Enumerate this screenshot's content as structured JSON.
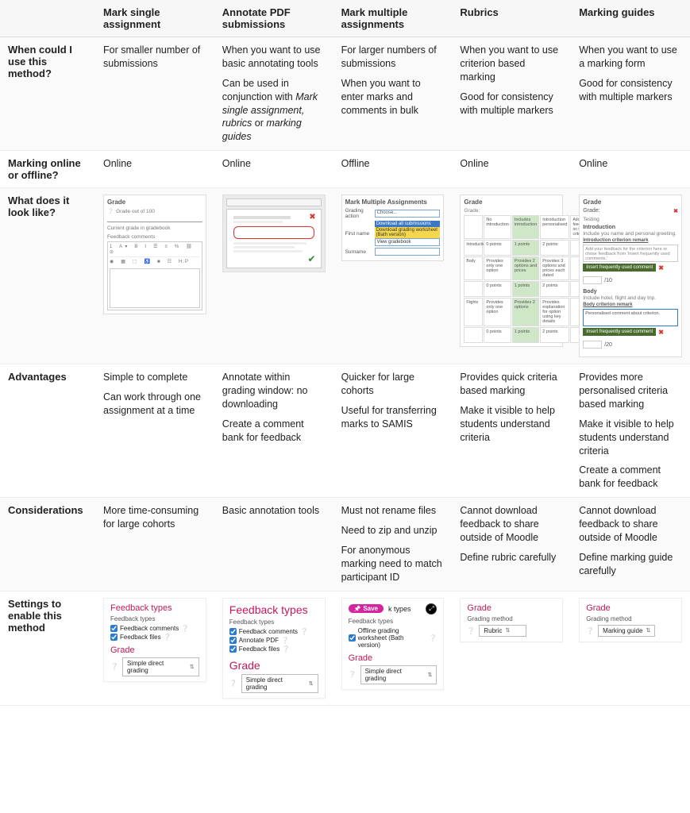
{
  "headers": [
    "",
    "Mark single assignment",
    "Annotate PDF submissions",
    "Mark multiple assignments",
    "Rubrics",
    "Marking guides"
  ],
  "rows": {
    "when": {
      "label": "When could I use this method?",
      "c1": [
        "For smaller number of submissions"
      ],
      "c2": [
        "When you want to use basic annotating tools",
        "Can be used in conjunction with <em>Mark single assignment, rubrics</em> or <em>marking guides</em>"
      ],
      "c3": [
        "For larger numbers of submissions",
        "When you want to enter marks and comments in bulk"
      ],
      "c4": [
        "When you want to use criterion based marking",
        "Good for consistency with multiple markers"
      ],
      "c5": [
        "When you want to use a marking form",
        "Good for consistency with multiple markers"
      ]
    },
    "online": {
      "label": "Marking online or offline?",
      "c1": "Online",
      "c2": "Online",
      "c3": "Offline",
      "c4": "Online",
      "c5": "Online"
    },
    "look": {
      "label": "What does it look like?"
    },
    "adv": {
      "label": "Advantages",
      "c1": [
        "Simple to complete",
        "Can work through one assignment at a time"
      ],
      "c2": [
        "Annotate within grading window: no downloading",
        "Create a comment bank for feedback"
      ],
      "c3": [
        "Quicker for large cohorts",
        "Useful for transferring marks to SAMIS"
      ],
      "c4": [
        "Provides quick criteria based marking",
        "Make it visible to help students understand criteria"
      ],
      "c5": [
        "Provides more personalised criteria based marking",
        "Make it visible to help students understand criteria",
        "Create a comment bank for feedback"
      ]
    },
    "cons": {
      "label": "Considerations",
      "c1": [
        "More time-consuming for large cohorts"
      ],
      "c2": [
        "Basic annotation tools"
      ],
      "c3": [
        "Must not rename files",
        "Need to zip and unzip",
        "For anonymous marking need to match participant ID"
      ],
      "c4": [
        "Cannot download feedback to share outside of Moodle",
        "Define rubric carefully"
      ],
      "c5": [
        "Cannot download feedback to share outside of Moodle",
        "Define marking guide carefully"
      ]
    },
    "settings": {
      "label": "Settings to enable this method"
    }
  },
  "thumbs": {
    "single": {
      "grade": "Grade",
      "outof": "Grade out of 100",
      "current": "Current grade in gradebook",
      "fb": "Feedback comments"
    },
    "multi": {
      "title": "Mark Multiple Assignments",
      "grading_action": "Grading action",
      "choose": "Choose...",
      "opt1": "Download all submissions",
      "opt2": "Download grading worksheet (Bath version)",
      "opt3": "View gradebook",
      "firstname": "First name",
      "surname": "Surname"
    },
    "rubric": {
      "grade": "Grade",
      "r1": "Introduction",
      "r2": "Body",
      "r3": "Flights"
    },
    "guide": {
      "grade": "Grade",
      "grade_lbl": "Grade:",
      "testing": "Testing",
      "intro": "Introduction",
      "intro_desc": "Include you name and personal greeting.",
      "intro_remark": "Introduction criterion remark",
      "intro_ph": "Add your feedback for the criterion here or chose feedback from 'Insert frequently used comments.'",
      "btn": "Insert frequently used comment",
      "s1": "/10",
      "body": "Body",
      "body_desc": "Include hotel, flight and day trip.",
      "body_remark": "Body criterion remark",
      "body_ph": "Personalised comment about criterion.",
      "s2": "/20"
    }
  },
  "settings": {
    "c1": {
      "ft": "Feedback types",
      "ft_sub": "Feedback types",
      "chk1": "Feedback comments",
      "chk2": "Feedback files",
      "grade": "Grade",
      "sel": "Simple direct grading"
    },
    "c2": {
      "ft": "Feedback types",
      "ft_sub": "Feedback types",
      "chk1": "Feedback comments",
      "chk2": "Annotate PDF",
      "chk3": "Feedback files",
      "grade": "Grade",
      "sel": "Simple direct grading"
    },
    "c3": {
      "save": "Save",
      "types": "k types",
      "ft_sub": "Feedback types",
      "chk1": "Offline grading worksheet (Bath version)",
      "grade": "Grade",
      "sel": "Simple direct grading"
    },
    "c4": {
      "grade": "Grade",
      "gm": "Grading method",
      "sel": "Rubric"
    },
    "c5": {
      "grade": "Grade",
      "gm": "Grading method",
      "sel": "Marking guide"
    }
  },
  "colors": {
    "pink": "#c2185b",
    "green_btn": "#4a6b2e",
    "blue": "#2b7bd1",
    "highlight": "#cfe7c7"
  }
}
